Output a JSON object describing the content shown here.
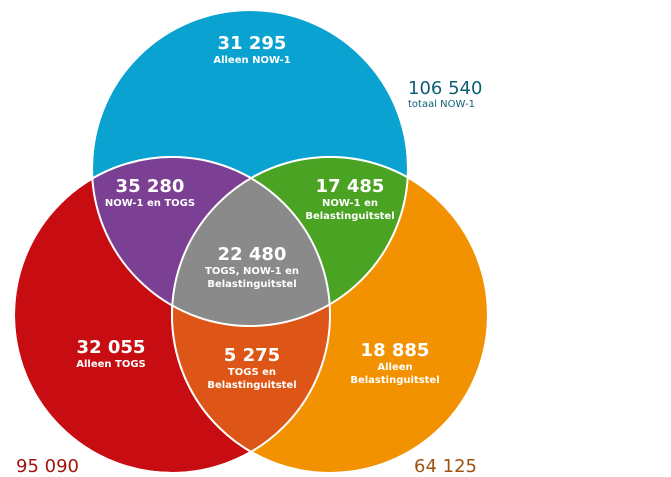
{
  "colors": {
    "now1": "#0aa3d1",
    "togs": "#c70d12",
    "uitstel": "#f29200",
    "now1_togs": "#7b3f93",
    "now1_uitstel": "#4aa322",
    "togs_uitstel": "#dd5617",
    "all": "#8a8a8a",
    "total_now1_text": "#0e5f73",
    "total_togs_text": "#a3140f",
    "total_uitstel_text": "#a0520f"
  },
  "regions": {
    "only_now1": {
      "value": "31 295",
      "label": "Alleen NOW-1"
    },
    "now1_togs": {
      "value": "35 280",
      "label": "NOW-1 en TOGS"
    },
    "now1_uitstel": {
      "value": "17 485",
      "label_1": "NOW-1 en",
      "label_2": "Belastinguitstel"
    },
    "all_three": {
      "value": "22 480",
      "label_1": "TOGS, NOW-1 en",
      "label_2": "Belastinguitstel"
    },
    "only_togs": {
      "value": "32 055",
      "label": "Alleen TOGS"
    },
    "togs_uitstel": {
      "value": "5 275",
      "label_1": "TOGS en",
      "label_2": "Belastinguitstel"
    },
    "only_uitstel": {
      "value": "18 885",
      "label_1": "Alleen",
      "label_2": "Belastinguitstel"
    }
  },
  "totals": {
    "now1": {
      "value": "106 540",
      "label": "totaal NOW-1"
    },
    "togs": {
      "value": "95 090"
    },
    "uitstel": {
      "value": "64 125"
    }
  }
}
